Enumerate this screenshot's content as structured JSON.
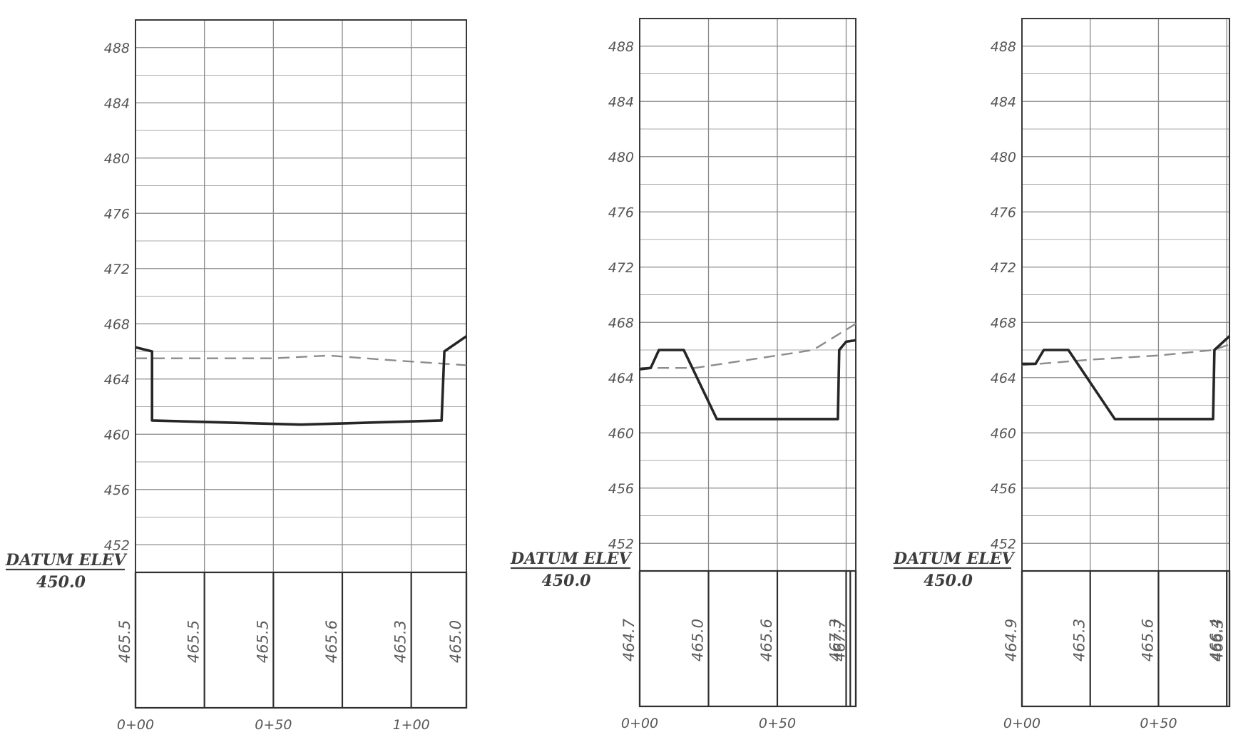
{
  "chart_data": [
    {
      "type": "line",
      "title": "",
      "xlabel": "",
      "ylabel": "",
      "xlim": [
        0,
        120
      ],
      "ylim": [
        450,
        490
      ],
      "y_ticks": [
        "452",
        "456",
        "460",
        "464",
        "468",
        "472",
        "476",
        "480",
        "484",
        "488"
      ],
      "x_ticks": [
        {
          "x": 0,
          "label": "0+00"
        },
        {
          "x": 50,
          "label": "0+50"
        },
        {
          "x": 100,
          "label": "1+00"
        }
      ],
      "datum": {
        "label": "DATUM ELEV",
        "value": "450.0"
      },
      "band_lines": [
        0,
        25,
        50,
        75,
        100,
        120
      ],
      "band_labels": [
        {
          "x": 0,
          "text": "465.5"
        },
        {
          "x": 25,
          "text": "465.5"
        },
        {
          "x": 50,
          "text": "465.5"
        },
        {
          "x": 75,
          "text": "465.6"
        },
        {
          "x": 100,
          "text": "465.3"
        },
        {
          "x": 120,
          "text": "465.0"
        }
      ],
      "series": [
        {
          "style": "dashed",
          "x": [
            0,
            25,
            50,
            70,
            90,
            120
          ],
          "y": [
            465.5,
            465.5,
            465.5,
            465.7,
            465.4,
            465.0
          ]
        },
        {
          "style": "solid",
          "x": [
            0,
            6,
            6,
            60,
            111,
            112,
            120
          ],
          "y": [
            466.3,
            466.0,
            461.0,
            460.7,
            461.0,
            466.0,
            467.1
          ]
        }
      ]
    },
    {
      "type": "line",
      "title": "",
      "xlabel": "",
      "ylabel": "",
      "xlim": [
        0,
        78.5
      ],
      "ylim": [
        450,
        490
      ],
      "y_ticks": [
        "452",
        "456",
        "460",
        "464",
        "468",
        "472",
        "476",
        "480",
        "484",
        "488"
      ],
      "x_ticks": [
        {
          "x": 0,
          "label": "0+00"
        },
        {
          "x": 50,
          "label": "0+50"
        }
      ],
      "datum": {
        "label": "DATUM ELEV",
        "value": "450.0"
      },
      "band_lines": [
        0,
        25,
        50,
        75,
        76.5,
        78.5
      ],
      "band_labels": [
        {
          "x": 0,
          "text": "464.7"
        },
        {
          "x": 25,
          "text": "465.0"
        },
        {
          "x": 50,
          "text": "465.6"
        },
        {
          "x": 75,
          "text": "467.3"
        },
        {
          "x": 76.5,
          "text": "467.7"
        }
      ],
      "series": [
        {
          "style": "dashed",
          "x": [
            0,
            20,
            40,
            63,
            78.5
          ],
          "y": [
            464.7,
            464.7,
            465.3,
            466.0,
            467.9
          ]
        },
        {
          "style": "solid",
          "x": [
            0,
            4,
            7,
            16,
            28,
            72,
            72.5,
            75,
            78.5
          ],
          "y": [
            464.6,
            464.7,
            466.0,
            466.0,
            461.0,
            461.0,
            466.0,
            466.6,
            466.7
          ]
        }
      ]
    },
    {
      "type": "line",
      "title": "",
      "xlabel": "",
      "ylabel": "",
      "xlim": [
        0,
        76
      ],
      "ylim": [
        450,
        490
      ],
      "y_ticks": [
        "452",
        "456",
        "460",
        "464",
        "468",
        "472",
        "476",
        "480",
        "484",
        "488"
      ],
      "x_ticks": [
        {
          "x": 0,
          "label": "0+00"
        },
        {
          "x": 50,
          "label": "0+50"
        }
      ],
      "datum": {
        "label": "DATUM ELEV",
        "value": "450.0"
      },
      "band_lines": [
        0,
        25,
        50,
        75,
        76
      ],
      "band_labels": [
        {
          "x": 0,
          "text": "464.9"
        },
        {
          "x": 25,
          "text": "465.3"
        },
        {
          "x": 50,
          "text": "465.6"
        },
        {
          "x": 75,
          "text": "466.4"
        },
        {
          "x": 75.6,
          "text": "466.3"
        }
      ],
      "series": [
        {
          "style": "dashed",
          "x": [
            0,
            25,
            50,
            70,
            76
          ],
          "y": [
            464.9,
            465.3,
            465.6,
            466.0,
            466.4
          ]
        },
        {
          "style": "solid",
          "x": [
            0,
            5,
            8,
            17,
            34,
            70,
            70.5,
            76
          ],
          "y": [
            465.0,
            465.0,
            466.0,
            466.0,
            461.0,
            461.0,
            466.0,
            467.0
          ]
        }
      ]
    }
  ]
}
